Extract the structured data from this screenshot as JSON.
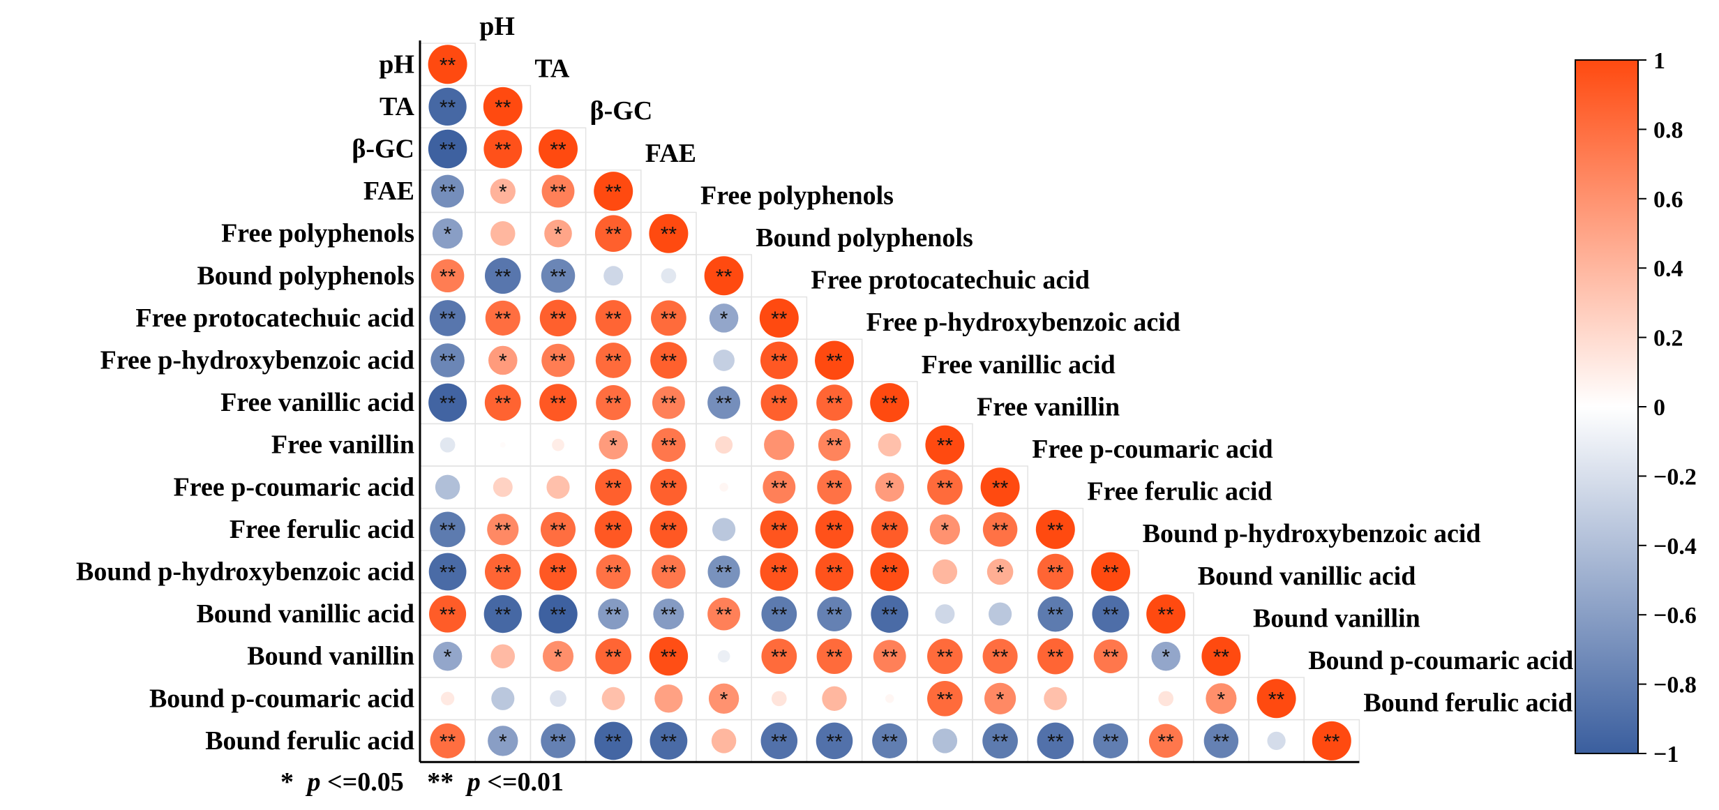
{
  "chart_data": {
    "type": "heatmap",
    "style": "correlation-circles-lower-triangle",
    "variables": [
      "pH",
      "TA",
      "β-GC",
      "FAE",
      "Free polyphenols",
      "Bound polyphenols",
      "Free protocatechuic acid",
      "Free p-hydroxybenzoic acid",
      "Free vanillic acid",
      "Free vanillin",
      "Free p-coumaric acid",
      "Free ferulic acid",
      "Bound p-hydroxybenzoic acid",
      "Bound vanillic acid",
      "Bound vanillin",
      "Bound p-coumaric acid",
      "Bound ferulic acid"
    ],
    "matrix": [
      [
        1
      ],
      [
        -0.94,
        1
      ],
      [
        -0.98,
        0.96,
        1
      ],
      [
        -0.7,
        0.42,
        0.7,
        1
      ],
      [
        -0.6,
        0.4,
        0.5,
        0.88,
        1
      ],
      [
        0.72,
        -0.85,
        -0.75,
        -0.25,
        -0.15,
        1
      ],
      [
        -0.85,
        0.8,
        0.88,
        0.85,
        0.82,
        -0.55,
        1
      ],
      [
        -0.75,
        0.55,
        0.72,
        0.82,
        0.88,
        -0.3,
        0.92,
        1
      ],
      [
        -0.96,
        0.86,
        0.92,
        0.8,
        0.7,
        -0.7,
        0.88,
        0.85,
        1
      ],
      [
        -0.15,
        0.02,
        0.1,
        0.55,
        0.75,
        0.2,
        0.6,
        0.68,
        0.35,
        1
      ],
      [
        -0.4,
        0.25,
        0.35,
        0.88,
        0.88,
        0.05,
        0.7,
        0.78,
        0.55,
        0.82,
        1
      ],
      [
        -0.82,
        0.65,
        0.8,
        0.92,
        0.92,
        -0.35,
        0.94,
        0.96,
        0.9,
        0.6,
        0.78,
        1
      ],
      [
        -0.92,
        0.85,
        0.92,
        0.78,
        0.75,
        -0.68,
        0.95,
        0.95,
        0.98,
        0.4,
        0.45,
        0.85,
        1
      ],
      [
        0.9,
        -0.94,
        -0.98,
        -0.62,
        -0.62,
        0.7,
        -0.82,
        -0.78,
        -0.92,
        -0.25,
        -0.35,
        -0.82,
        -0.9,
        1
      ],
      [
        -0.55,
        0.38,
        0.62,
        0.85,
        0.98,
        -0.1,
        0.82,
        0.82,
        0.7,
        0.82,
        0.8,
        0.85,
        0.75,
        -0.55,
        1
      ],
      [
        0.12,
        -0.35,
        -0.18,
        0.35,
        0.52,
        0.6,
        0.15,
        0.4,
        0.05,
        0.82,
        0.65,
        0.35,
        0.0,
        0.15,
        0.62,
        1
      ],
      [
        0.8,
        -0.6,
        -0.78,
        -0.95,
        -0.92,
        0.4,
        -0.88,
        -0.88,
        -0.8,
        -0.4,
        -0.82,
        -0.88,
        -0.8,
        0.75,
        -0.78,
        -0.22,
        1
      ]
    ],
    "significance": [
      [
        "**"
      ],
      [
        "**",
        "**"
      ],
      [
        "**",
        "**",
        "**"
      ],
      [
        "**",
        "*",
        "**",
        "**"
      ],
      [
        "*",
        "",
        "*",
        "**",
        "**"
      ],
      [
        "**",
        "**",
        "**",
        "",
        "",
        "**"
      ],
      [
        "**",
        "**",
        "**",
        "**",
        "**",
        "*",
        "**"
      ],
      [
        "**",
        "*",
        "**",
        "**",
        "**",
        "",
        "**",
        "**"
      ],
      [
        "**",
        "**",
        "**",
        "**",
        "**",
        "**",
        "**",
        "**",
        "**"
      ],
      [
        "",
        "",
        "",
        "*",
        "**",
        "",
        "",
        "**",
        "",
        "**"
      ],
      [
        "",
        "",
        "",
        "**",
        "**",
        "",
        "**",
        "**",
        "*",
        "**",
        "**"
      ],
      [
        "**",
        "**",
        "**",
        "**",
        "**",
        "",
        "**",
        "**",
        "**",
        "*",
        "**",
        "**"
      ],
      [
        "**",
        "**",
        "**",
        "**",
        "**",
        "**",
        "**",
        "**",
        "**",
        "",
        "*",
        "**",
        "**"
      ],
      [
        "**",
        "**",
        "**",
        "**",
        "**",
        "**",
        "**",
        "**",
        "**",
        "",
        "",
        "**",
        "**",
        "**"
      ],
      [
        "*",
        "",
        "*",
        "**",
        "**",
        "",
        "**",
        "**",
        "**",
        "**",
        "**",
        "**",
        "**",
        "*",
        "**"
      ],
      [
        "",
        "",
        "",
        "",
        "",
        "*",
        "",
        "",
        "",
        "**",
        "*",
        "",
        "",
        "",
        "*",
        "**"
      ],
      [
        "**",
        "*",
        "**",
        "**",
        "**",
        "",
        "**",
        "**",
        "**",
        "",
        "**",
        "**",
        "**",
        "**",
        "**",
        "",
        "**"
      ]
    ],
    "colorbar": {
      "ticks": [
        "1",
        "0.8",
        "0.6",
        "0.4",
        "0.2",
        "0",
        "−0.2",
        "−0.4",
        "−0.6",
        "−0.8",
        "−1"
      ],
      "range": [
        -1,
        1
      ],
      "colors": {
        "negative": "#3A5E9E",
        "zero": "#FFFFFF",
        "positive": "#FF4A10"
      }
    },
    "footnote": {
      "p1_star": "*",
      "p1_p": "p",
      "p1_rest": "<=0.05",
      "p2_star": "**",
      "p2_p": "p",
      "p2_rest": "<=0.01"
    }
  }
}
